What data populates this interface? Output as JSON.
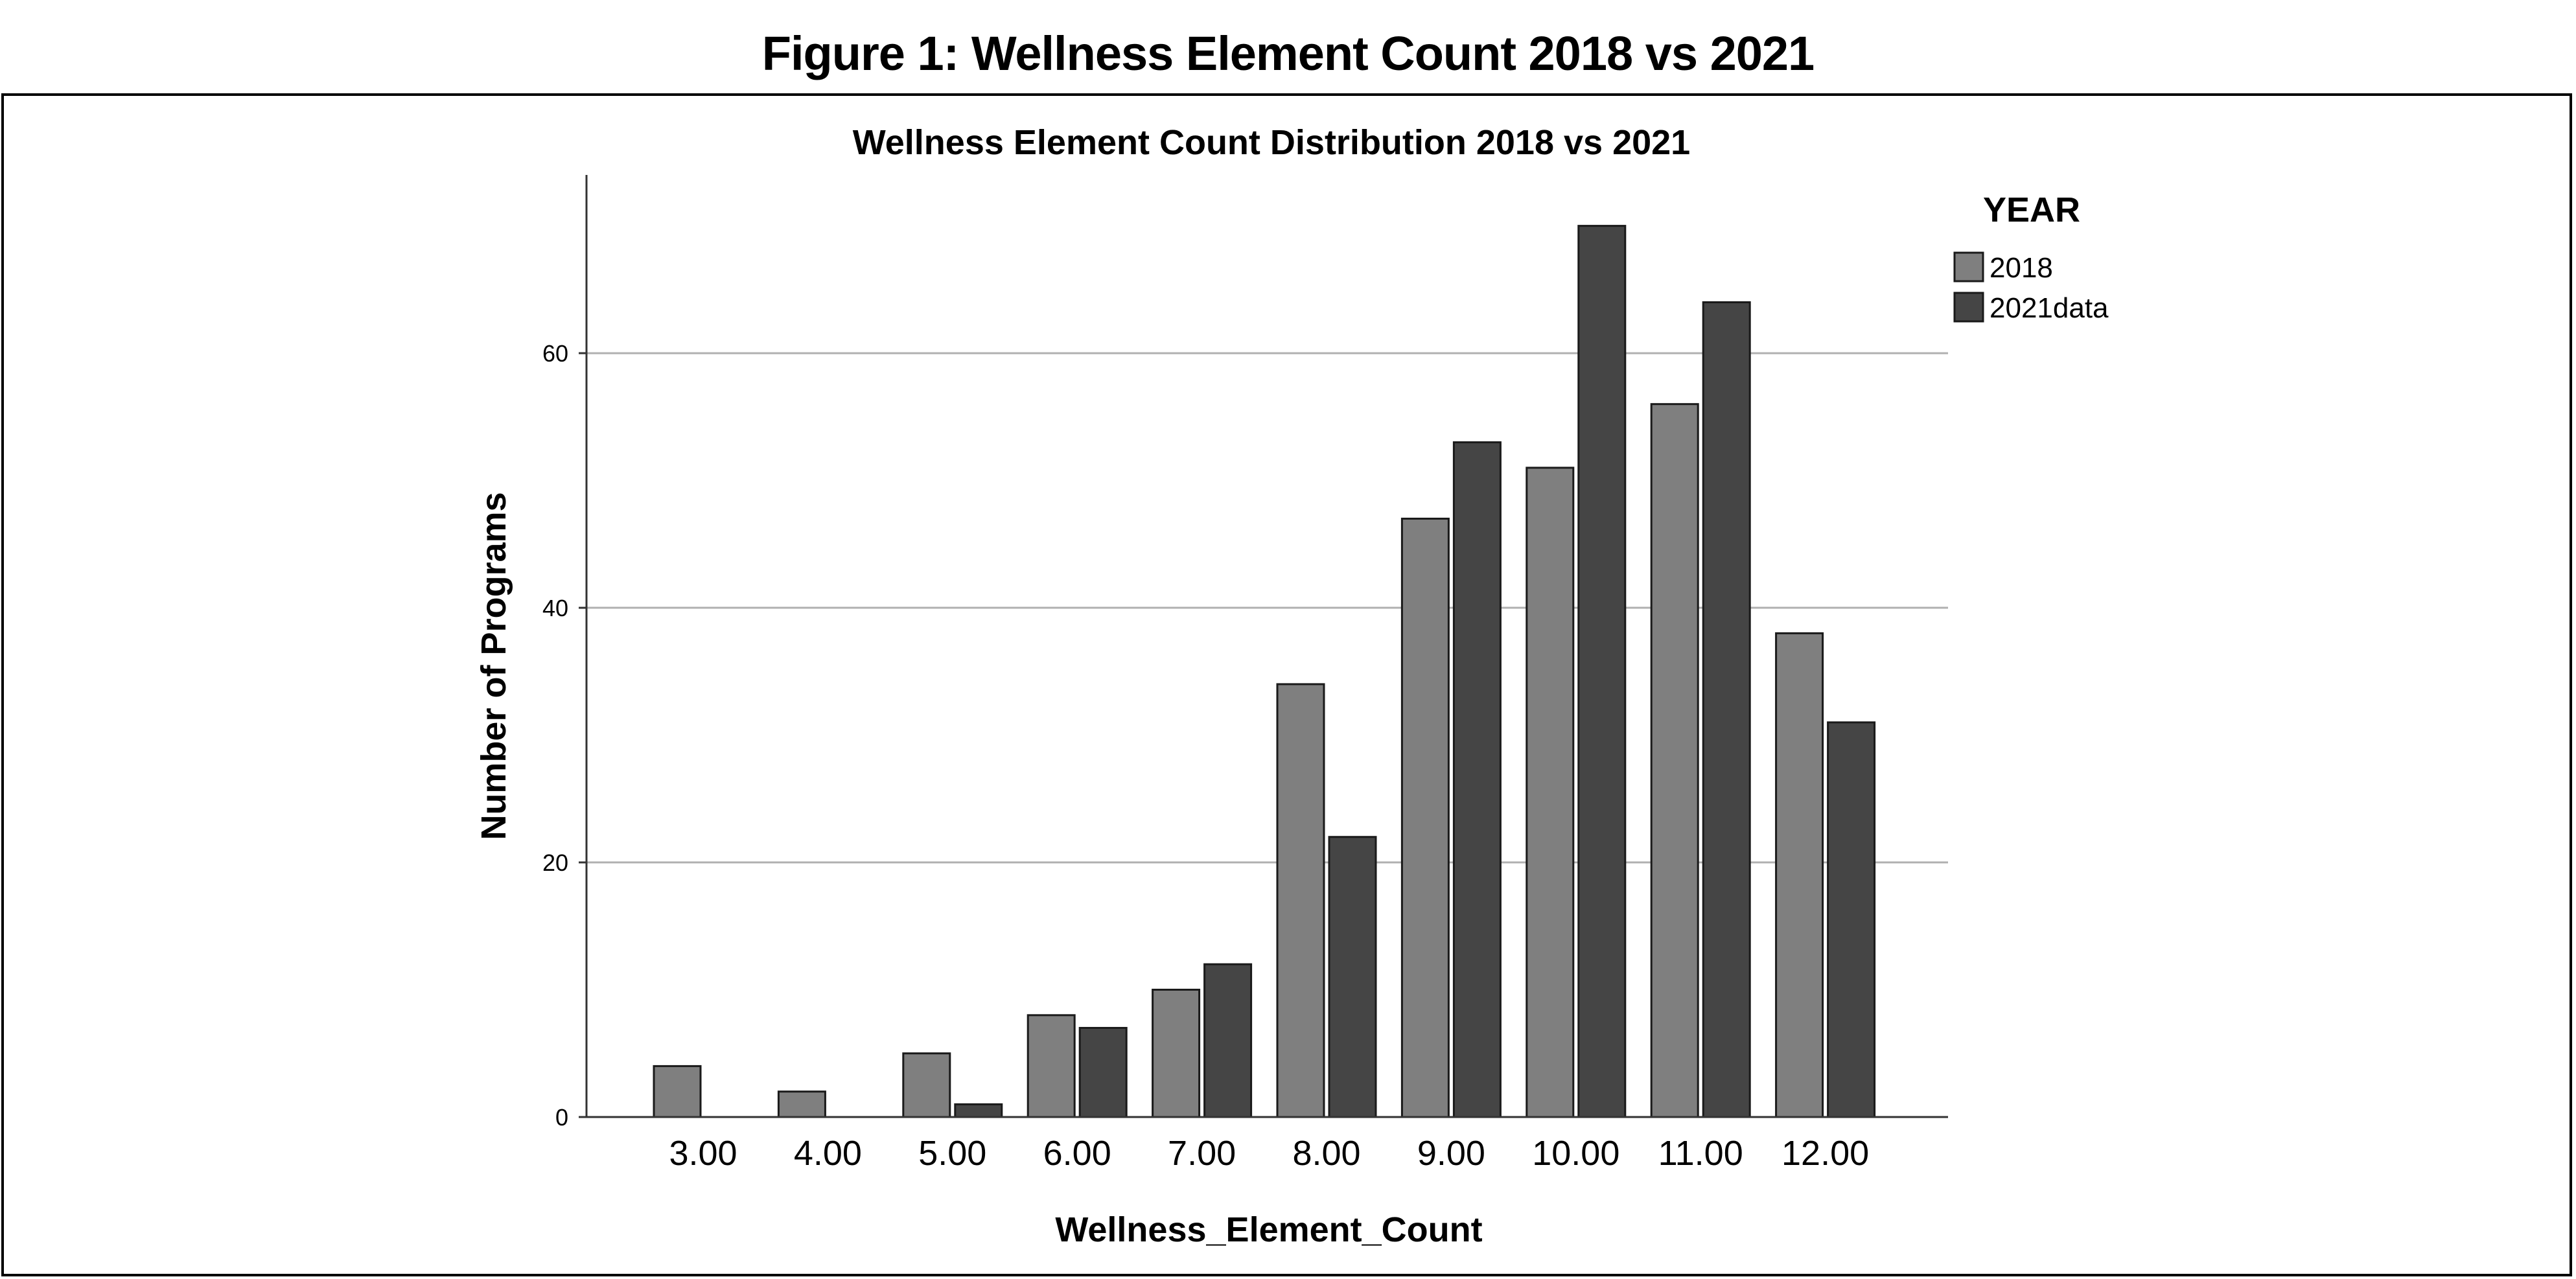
{
  "figure": {
    "caption": "Figure 1: Wellness Element Count 2018 vs 2021"
  },
  "chart_data": {
    "type": "bar",
    "title": "Wellness Element Count Distribution 2018 vs 2021",
    "xlabel": "Wellness_Element_Count",
    "ylabel": "Number of Programs",
    "categories": [
      "3.00",
      "4.00",
      "5.00",
      "6.00",
      "7.00",
      "8.00",
      "9.00",
      "10.00",
      "11.00",
      "12.00"
    ],
    "series": [
      {
        "name": "2018",
        "color": "#7f7f7f",
        "values": [
          4,
          2,
          5,
          8,
          10,
          34,
          47,
          51,
          56,
          38
        ]
      },
      {
        "name": "2021data",
        "color": "#454545",
        "values": [
          0,
          0,
          1,
          7,
          12,
          22,
          53,
          70,
          64,
          31
        ]
      }
    ],
    "ylim": [
      0,
      74
    ],
    "yticks": [
      0,
      20,
      40,
      60
    ],
    "grid": true,
    "legend": {
      "title": "YEAR",
      "position": "top-right"
    }
  }
}
